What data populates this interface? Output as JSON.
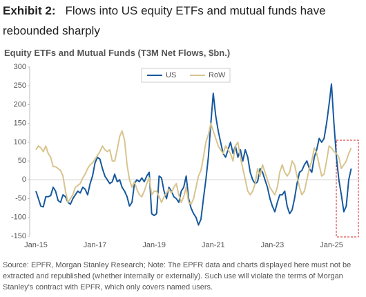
{
  "chart_data": {
    "type": "line",
    "title_label": "Exhibit 2:",
    "title": [
      "Flows into US equity ETFs and mutual funds have",
      "rebounded sharply"
    ],
    "subtitle": "Equity ETFs and Mutual Funds (T3M Net Flows, $bn.)",
    "source": [
      "Source: EPFR, Morgan Stanley Research; Note: The EPFR data and charts displayed here must not be",
      "extracted and republished (whether internally or externally). Such use will violate the terms of Morgan",
      "Stanley's contract with EPFR, which only covers named users."
    ],
    "x": [
      "Jan-15",
      "Feb-15",
      "Mar-15",
      "Apr-15",
      "May-15",
      "Jun-15",
      "Jul-15",
      "Aug-15",
      "Sep-15",
      "Oct-15",
      "Nov-15",
      "Dec-15",
      "Jan-16",
      "Feb-16",
      "Mar-16",
      "Apr-16",
      "May-16",
      "Jun-16",
      "Jul-16",
      "Aug-16",
      "Sep-16",
      "Oct-16",
      "Nov-16",
      "Dec-16",
      "Jan-17",
      "Feb-17",
      "Mar-17",
      "Apr-17",
      "May-17",
      "Jun-17",
      "Jul-17",
      "Aug-17",
      "Sep-17",
      "Oct-17",
      "Nov-17",
      "Dec-17",
      "Jan-18",
      "Feb-18",
      "Mar-18",
      "Apr-18",
      "May-18",
      "Jun-18",
      "Jul-18",
      "Aug-18",
      "Sep-18",
      "Oct-18",
      "Nov-18",
      "Dec-18",
      "Jan-19",
      "Feb-19",
      "Mar-19",
      "Apr-19",
      "May-19",
      "Jun-19",
      "Jul-19",
      "Aug-19",
      "Sep-19",
      "Oct-19",
      "Nov-19",
      "Dec-19",
      "Jan-20",
      "Feb-20",
      "Mar-20",
      "Apr-20",
      "May-20",
      "Jun-20",
      "Jul-20",
      "Aug-20",
      "Sep-20",
      "Oct-20",
      "Nov-20",
      "Dec-20",
      "Jan-21",
      "Feb-21",
      "Mar-21",
      "Apr-21",
      "May-21",
      "Jun-21",
      "Jul-21",
      "Aug-21",
      "Sep-21",
      "Oct-21",
      "Nov-21",
      "Dec-21",
      "Jan-22",
      "Feb-22",
      "Mar-22",
      "Apr-22",
      "May-22",
      "Jun-22",
      "Jul-22",
      "Aug-22",
      "Sep-22",
      "Oct-22",
      "Nov-22",
      "Dec-22",
      "Jan-23",
      "Feb-23",
      "Mar-23",
      "Apr-23",
      "May-23",
      "Jun-23",
      "Jul-23",
      "Aug-23",
      "Sep-23",
      "Oct-23",
      "Nov-23",
      "Dec-23",
      "Jan-24",
      "Feb-24",
      "Mar-24",
      "Apr-24",
      "May-24",
      "Jun-24",
      "Jul-24",
      "Aug-24",
      "Sep-24",
      "Oct-24",
      "Nov-24",
      "Dec-24",
      "Jan-25",
      "Feb-25",
      "Mar-25",
      "Apr-25",
      "May-25",
      "Jun-25",
      "Jul-25",
      "Aug-25",
      "Sep-25"
    ],
    "series": [
      {
        "name": "US",
        "color": "#17599e",
        "values": [
          -30,
          -50,
          -70,
          -72,
          -45,
          -45,
          -42,
          -20,
          -30,
          -55,
          -60,
          -40,
          -45,
          -60,
          -65,
          -50,
          -40,
          -30,
          -35,
          -20,
          -25,
          -40,
          -10,
          10,
          45,
          60,
          55,
          30,
          10,
          0,
          -10,
          -5,
          15,
          -5,
          0,
          -20,
          -30,
          -45,
          -70,
          -60,
          -10,
          0,
          -5,
          5,
          -5,
          10,
          20,
          -90,
          -95,
          -90,
          10,
          5,
          -30,
          -50,
          -20,
          -30,
          -45,
          -50,
          -60,
          -30,
          -20,
          10,
          -50,
          -75,
          -90,
          -100,
          -120,
          -105,
          -50,
          0,
          60,
          150,
          230,
          170,
          130,
          100,
          70,
          60,
          80,
          100,
          70,
          90,
          60,
          80,
          50,
          80,
          60,
          20,
          0,
          -10,
          -5,
          30,
          20,
          0,
          -20,
          -50,
          -70,
          -85,
          -60,
          -40,
          -40,
          -30,
          -70,
          -90,
          -80,
          -50,
          -10,
          20,
          25,
          40,
          50,
          30,
          20,
          60,
          80,
          110,
          100,
          110,
          150,
          200,
          255,
          150,
          60,
          0,
          -40,
          -85,
          -70,
          0,
          30
        ]
      },
      {
        "name": "RoW",
        "color": "#d8c48e",
        "values": [
          80,
          90,
          85,
          75,
          90,
          70,
          60,
          35,
          35,
          30,
          25,
          10,
          -30,
          -60,
          -50,
          -40,
          -20,
          -15,
          -10,
          5,
          15,
          30,
          40,
          45,
          55,
          65,
          75,
          90,
          80,
          75,
          80,
          50,
          50,
          80,
          115,
          130,
          105,
          40,
          0,
          -20,
          -5,
          -25,
          -40,
          -45,
          -30,
          -10,
          5,
          -40,
          -30,
          -30,
          -45,
          -60,
          -45,
          -35,
          -25,
          -35,
          -20,
          -10,
          -40,
          -60,
          -45,
          -20,
          -60,
          -65,
          -50,
          -20,
          10,
          25,
          60,
          100,
          120,
          150,
          130,
          110,
          90,
          80,
          70,
          90,
          80,
          70,
          50,
          90,
          100,
          60,
          30,
          0,
          -30,
          -40,
          -30,
          -10,
          30,
          10,
          40,
          20,
          0,
          -20,
          -30,
          -40,
          -20,
          20,
          40,
          20,
          10,
          20,
          50,
          40,
          10,
          -20,
          -40,
          -30,
          0,
          30,
          50,
          85,
          70,
          40,
          10,
          15,
          50,
          90,
          85,
          75,
          70,
          60,
          30,
          40,
          50,
          70,
          85
        ]
      }
    ],
    "xticks": [
      "Jan-15",
      "Jan-17",
      "Jan-19",
      "Jan-21",
      "Jan-23",
      "Jan-25"
    ],
    "ylim": [
      -150,
      300
    ],
    "yticks": [
      -150,
      -100,
      -50,
      0,
      50,
      100,
      150,
      200,
      250,
      300
    ],
    "grid": false,
    "legend": "top"
  }
}
